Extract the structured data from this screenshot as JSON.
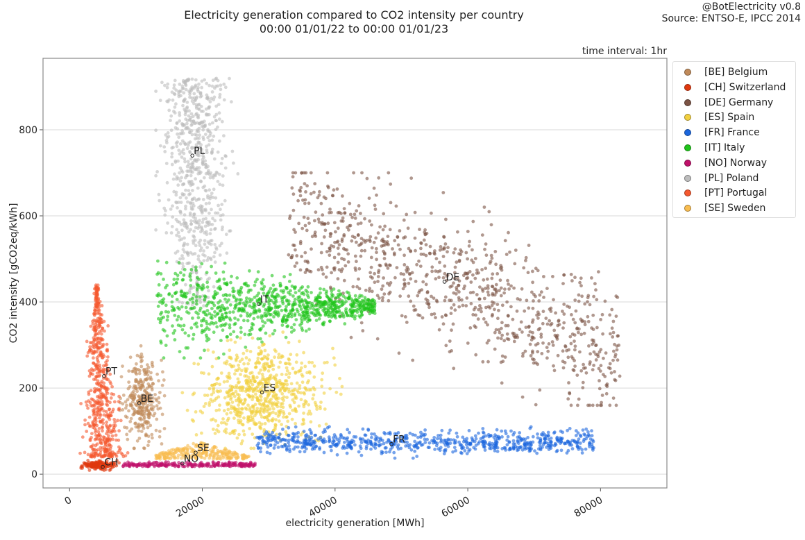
{
  "header": {
    "title_line1": "Electricity generation compared to CO2 intensity per country",
    "title_line2": "00:00 01/01/22 to 00:00 01/01/23",
    "credit_line1": "@BotElectricity v0.8",
    "credit_line2": "Source: ENTSO-E, IPCC 2014",
    "interval": "time interval: 1hr"
  },
  "chart_data": {
    "type": "scatter",
    "title": "Electricity generation compared to CO2 intensity per country",
    "xlabel": "electricity generation [MWh]",
    "ylabel": "CO2 intensity [gCO2eq/kWh]",
    "xlim": [
      -4000,
      90000
    ],
    "ylim": [
      -32,
      966
    ],
    "xticks": [
      0,
      20000,
      40000,
      60000,
      80000
    ],
    "xtick_labels": [
      "0",
      "20000",
      "40000",
      "60000",
      "80000"
    ],
    "yticks": [
      0,
      200,
      400,
      600,
      800
    ],
    "ytick_labels": [
      "0",
      "200",
      "400",
      "600",
      "800"
    ],
    "grid": "horizontal",
    "legend_placement": "outside-right",
    "series": [
      {
        "code": "PL",
        "name": "[PL] Poland",
        "color": "#bdbdbd",
        "mean": [
          18500,
          740
        ],
        "xrange": [
          13000,
          26500
        ],
        "yrange": [
          380,
          925
        ]
      },
      {
        "code": "DE",
        "name": "[DE] Germany",
        "color": "#7b5344",
        "mean": [
          56500,
          447
        ],
        "xrange": [
          32000,
          86000
        ],
        "yrange": [
          160,
          700
        ]
      },
      {
        "code": "IT",
        "name": "[IT] Italy",
        "color": "#1fc41a",
        "mean": [
          28500,
          395
        ],
        "xrange": [
          12500,
          47000
        ],
        "yrange": [
          270,
          495
        ]
      },
      {
        "code": "ES",
        "name": "[ES] Spain",
        "color": "#f2d040",
        "mean": [
          29000,
          190
        ],
        "xrange": [
          17000,
          42000
        ],
        "yrange": [
          60,
          330
        ]
      },
      {
        "code": "FR",
        "name": "[FR] France",
        "color": "#1a66dd",
        "mean": [
          48500,
          70
        ],
        "xrange": [
          27000,
          86000
        ],
        "yrange": [
          30,
          118
        ]
      },
      {
        "code": "BE",
        "name": "[BE] Belgium",
        "color": "#c08a5a",
        "mean": [
          10500,
          165
        ],
        "xrange": [
          7500,
          15000
        ],
        "yrange": [
          60,
          305
        ]
      },
      {
        "code": "PT",
        "name": "[PT] Portugal",
        "color": "#f5582e",
        "mean": [
          5200,
          228
        ],
        "xrange": [
          800,
          10500
        ],
        "yrange": [
          35,
          445
        ]
      },
      {
        "code": "SE",
        "name": "[SE] Sweden",
        "color": "#f9bd50",
        "mean": [
          19000,
          50
        ],
        "xrange": [
          13000,
          27000
        ],
        "yrange": [
          22,
          95
        ]
      },
      {
        "code": "NO",
        "name": "[NO] Norway",
        "color": "#c0106a",
        "mean": [
          17000,
          25
        ],
        "xrange": [
          8000,
          28500
        ],
        "yrange": [
          18,
          35
        ]
      },
      {
        "code": "CH",
        "name": "[CH] Switzerland",
        "color": "#e0380e",
        "mean": [
          5000,
          17
        ],
        "xrange": [
          1000,
          8500
        ],
        "yrange": [
          8,
          40
        ]
      }
    ],
    "legend_order": [
      "BE",
      "CH",
      "DE",
      "ES",
      "FR",
      "IT",
      "NO",
      "PL",
      "PT",
      "SE"
    ]
  }
}
